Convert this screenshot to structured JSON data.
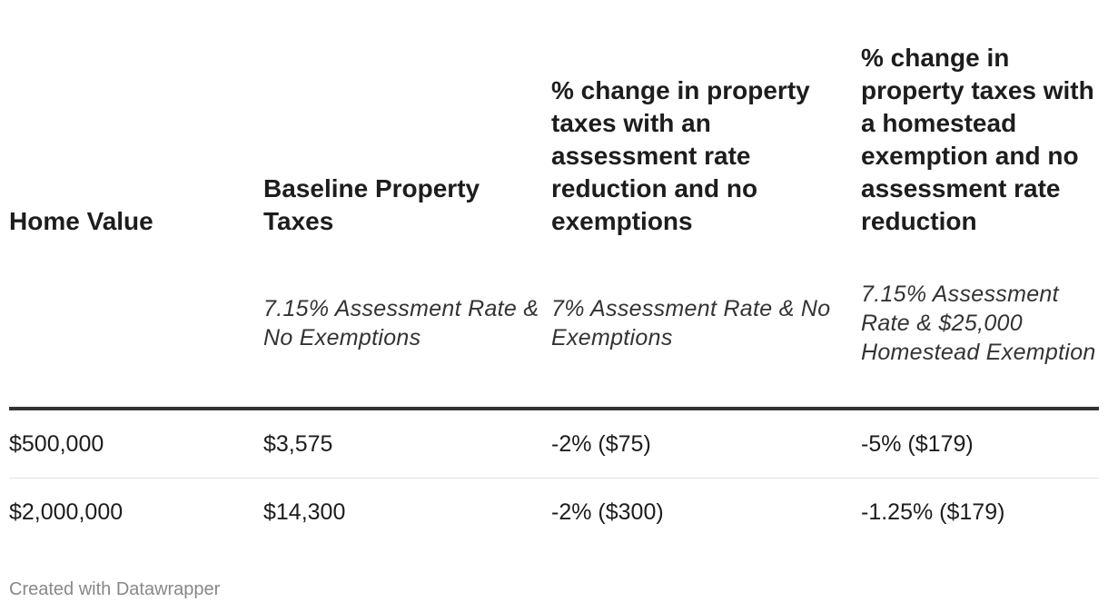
{
  "chart_data": {
    "type": "table",
    "columns": [
      {
        "header": "Home Value",
        "subheader": ""
      },
      {
        "header": "Baseline Property Taxes",
        "subheader": "7.15% Assessment Rate & No Exemptions"
      },
      {
        "header": "% change in property taxes with an assessment rate reduction and no exemptions",
        "subheader": "7% Assessment Rate & No Exemptions"
      },
      {
        "header": "% change in property taxes with a homestead exemption and no assessment rate reduction",
        "subheader": "7.15% Assessment Rate & $25,000 Homestead Exemption"
      }
    ],
    "rows": [
      [
        "$500,000",
        "$3,575",
        "-2% ($75)",
        "-5% ($179)"
      ],
      [
        "$2,000,000",
        "$14,300",
        "-2% ($300)",
        "-1.25% ($179)"
      ]
    ]
  },
  "footer": {
    "credit": "Created with Datawrapper"
  }
}
